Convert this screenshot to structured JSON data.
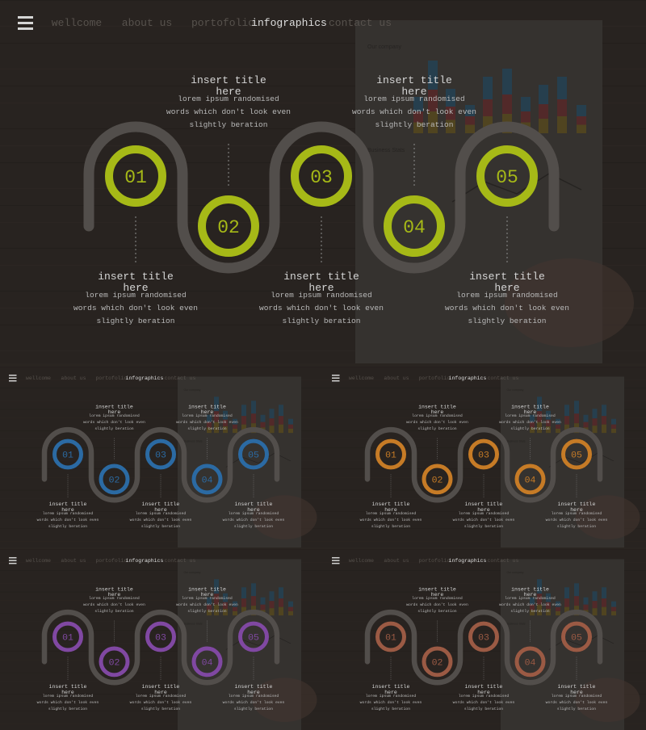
{
  "nav": {
    "menu_icon": "hamburger-menu-icon",
    "items": [
      {
        "label": "wellcome",
        "active": false
      },
      {
        "label": "about us",
        "active": false
      },
      {
        "label": "portofolio",
        "active": false
      },
      {
        "label": "infographics",
        "active": true
      },
      {
        "label": "contact us",
        "active": false
      }
    ]
  },
  "background_chart": {
    "title": "Our company",
    "subtitle": "Business Stats"
  },
  "steps": [
    {
      "number": "01",
      "title": "insert title here",
      "body": [
        "lorem ipsum randomised",
        "words which don't look even",
        "slightly beration"
      ]
    },
    {
      "number": "02",
      "title": "insert title here",
      "body": [
        "lorem ipsum randomised",
        "words which don't look even",
        "slightly beration"
      ]
    },
    {
      "number": "03",
      "title": "insert title here",
      "body": [
        "lorem ipsum randomised",
        "words which don't look even",
        "slightly beration"
      ]
    },
    {
      "number": "04",
      "title": "insert title here",
      "body": [
        "lorem ipsum randomised",
        "words which don't look even",
        "slightly beration"
      ]
    },
    {
      "number": "05",
      "title": "insert title here",
      "body": [
        "lorem ipsum randomised",
        "words which don't look even",
        "slightly beration"
      ]
    }
  ],
  "color_variants": [
    {
      "name": "lime",
      "accent": "#b5c91a"
    },
    {
      "name": "blue",
      "accent": "#2f74b1"
    },
    {
      "name": "orange",
      "accent": "#d7862a"
    },
    {
      "name": "purple",
      "accent": "#8b4fb0"
    },
    {
      "name": "rust",
      "accent": "#a9624a"
    }
  ],
  "colors": {
    "track": "#5a5552",
    "nav_inactive": "#5f5954",
    "nav_active": "#f0f0f0",
    "text": "#e6e6e6",
    "subtext": "#c8c8c8"
  }
}
